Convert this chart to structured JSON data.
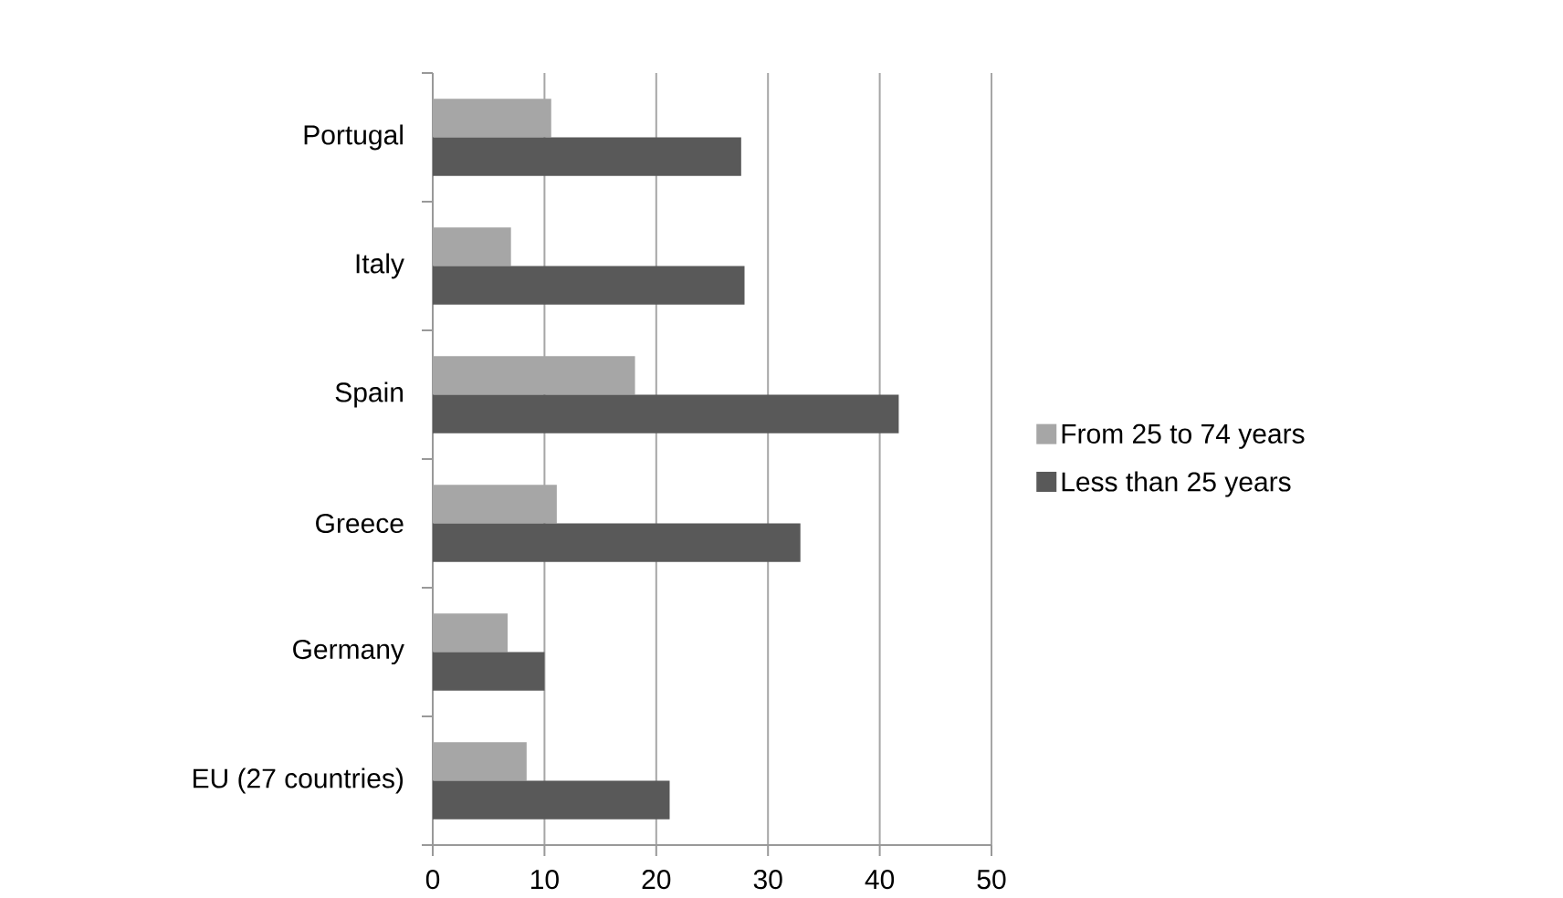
{
  "chart_data": {
    "type": "bar",
    "orientation": "horizontal",
    "categories": [
      "Portugal",
      "Italy",
      "Spain",
      "Greece",
      "Germany",
      "EU (27 countries)"
    ],
    "series": [
      {
        "name": "From 25 to 74 years",
        "color": "#a6a6a6",
        "values": [
          10.6,
          7.0,
          18.1,
          11.1,
          6.7,
          8.4
        ]
      },
      {
        "name": "Less than 25 years",
        "color": "#595959",
        "values": [
          27.6,
          27.9,
          41.7,
          32.9,
          10.0,
          21.2
        ]
      }
    ],
    "xlim": [
      0,
      50
    ],
    "xticks": [
      0,
      10,
      20,
      30,
      40,
      50
    ],
    "grid": "x",
    "legend": "right"
  }
}
